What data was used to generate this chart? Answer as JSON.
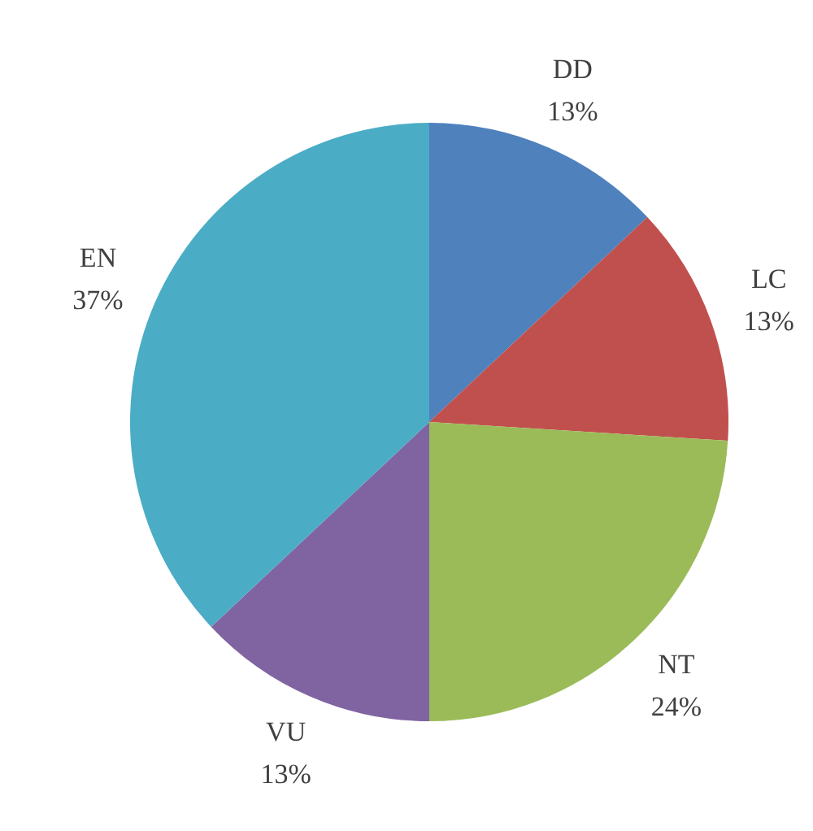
{
  "chart_data": {
    "type": "pie",
    "categories": [
      "DD",
      "LC",
      "NT",
      "VU",
      "EN"
    ],
    "values": [
      13,
      13,
      24,
      13,
      37
    ],
    "colors": [
      "#4f81bd",
      "#c0504d",
      "#9bbb59",
      "#8064a2",
      "#4bacc6"
    ],
    "value_labels": [
      "13%",
      "13%",
      "24%",
      "13%",
      "37%"
    ],
    "legend": false
  }
}
